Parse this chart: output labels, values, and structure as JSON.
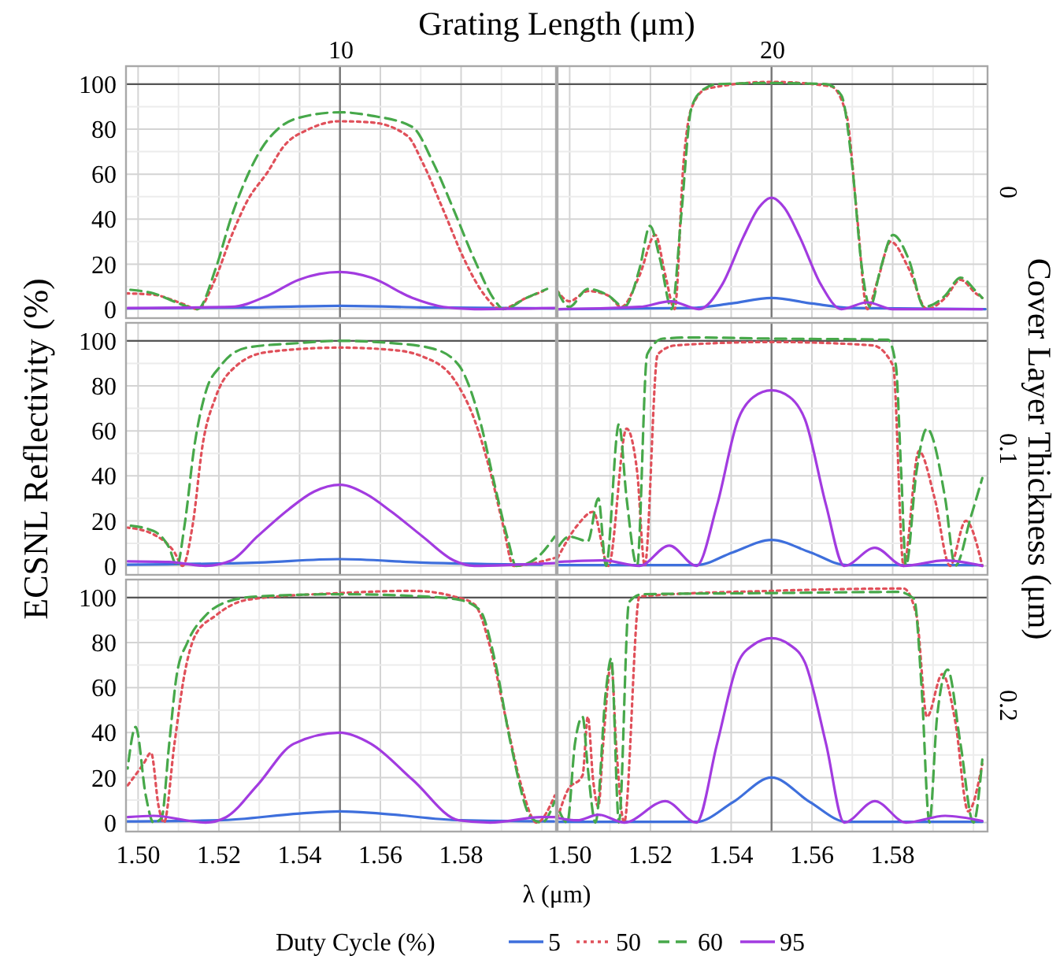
{
  "chart_data": [
    {
      "type": "line",
      "title": "10",
      "annotations": [
        "Grating Length (μm)",
        "Cover Layer Thickness (μm)"
      ],
      "legend": "bottom",
      "legend_title": "Duty Cycle (%)",
      "tick_labels": "y",
      "grid": true,
      "xlim": [
        1.497,
        1.6035
      ],
      "ylim": [
        -4,
        108
      ],
      "xticks": [
        1.5,
        {
          "value": 1.51,
          "label": null
        },
        1.52,
        {
          "value": 1.53,
          "label": null
        },
        1.54,
        {
          "value": 1.55,
          "label": null
        },
        1.56,
        {
          "value": 1.57,
          "label": null
        },
        1.58,
        {
          "value": 1.59,
          "label": null
        },
        {
          "value": 1.6,
          "label": null
        }
      ],
      "yticks": [
        0,
        {
          "value": 10,
          "label": null
        },
        20,
        {
          "value": 30,
          "label": null
        },
        40,
        {
          "value": 50,
          "label": null
        },
        60,
        {
          "value": 70,
          "label": null
        },
        80,
        {
          "value": 90,
          "label": null
        },
        100
      ],
      "ref_lines": [
        {
          "axis": "y",
          "value": 100,
          "color": "#555555"
        },
        {
          "axis": "x",
          "value": 1.55,
          "color": "#777777"
        }
      ],
      "series": [
        {
          "name": "5",
          "color": "#3e6fdc",
          "line_style": "solid",
          "x": [
            1.497,
            1.53,
            1.55,
            1.57,
            1.603
          ],
          "values": [
            0.3,
            0.8,
            1.5,
            0.8,
            0.3
          ]
        },
        {
          "name": "50",
          "color": "#e0505a",
          "line_style": "dotted",
          "x": [
            1.497,
            1.5038,
            1.511,
            1.5147,
            1.519,
            1.523,
            1.527,
            1.5321,
            1.5359,
            1.5423,
            1.55,
            1.5577,
            1.5667,
            1.5705,
            1.5756,
            1.5808,
            1.5859,
            1.5897,
            1.5962,
            1.6003
          ],
          "values": [
            7,
            6.4,
            2.4,
            0,
            13,
            32,
            48,
            61,
            72,
            80,
            83.5,
            83,
            77,
            65,
            44,
            22,
            6,
            0,
            5,
            8
          ]
        },
        {
          "name": "60",
          "color": "#47a84a",
          "line_style": "dashed",
          "x": [
            1.4974,
            1.5038,
            1.5103,
            1.5147,
            1.5192,
            1.5231,
            1.527,
            1.5308,
            1.5346,
            1.5397,
            1.55,
            1.5577,
            1.5679,
            1.5731,
            1.5782,
            1.5833,
            1.5885,
            1.5904,
            1.5962,
            1.6013
          ],
          "values": [
            8.7,
            7,
            2.4,
            0,
            18,
            41,
            59,
            72,
            80,
            85,
            87.5,
            86,
            81,
            65,
            44,
            22,
            3.5,
            0,
            5,
            9
          ]
        },
        {
          "name": "95",
          "color": "#a23be0",
          "line_style": "solid",
          "x": [
            1.4974,
            1.5231,
            1.5321,
            1.5397,
            1.55,
            1.5577,
            1.5679,
            1.5756,
            1.5833,
            1.6032
          ],
          "values": [
            0.5,
            1,
            6,
            13,
            16.5,
            14,
            5,
            1,
            0,
            0.5
          ]
        }
      ]
    },
    {
      "type": "line",
      "title": "20",
      "y2label": "0",
      "tick_labels": false,
      "grid": true,
      "xlim": [
        1.497,
        1.6035
      ],
      "ylim": [
        -4,
        108
      ],
      "xticks": [
        1.5,
        {
          "value": 1.51,
          "label": null
        },
        1.52,
        {
          "value": 1.53,
          "label": null
        },
        1.54,
        {
          "value": 1.55,
          "label": null
        },
        1.56,
        {
          "value": 1.57,
          "label": null
        },
        1.58,
        {
          "value": 1.59,
          "label": null
        },
        {
          "value": 1.6,
          "label": null
        }
      ],
      "yticks": [
        0,
        {
          "value": 10,
          "label": null
        },
        20,
        {
          "value": 30,
          "label": null
        },
        40,
        {
          "value": 50,
          "label": null
        },
        60,
        {
          "value": 70,
          "label": null
        },
        80,
        {
          "value": 90,
          "label": null
        },
        100
      ],
      "ref_lines": [
        {
          "axis": "y",
          "value": 100,
          "color": "#555555"
        },
        {
          "axis": "x",
          "value": 1.55,
          "color": "#777777"
        }
      ],
      "series": [
        {
          "color": "#3e6fdc",
          "line_style": "solid",
          "x": [
            1.497,
            1.53,
            1.54,
            1.55,
            1.56,
            1.57,
            1.603
          ],
          "values": [
            0,
            0.5,
            2.5,
            5,
            2.5,
            0.5,
            0
          ]
        },
        {
          "color": "#e0505a",
          "line_style": "dotted",
          "x": [
            1.497,
            1.4999,
            1.5045,
            1.5096,
            1.5128,
            1.5173,
            1.5212,
            1.5237,
            1.526,
            1.5282,
            1.5301,
            1.534,
            1.55,
            1.5647,
            1.5686,
            1.5712,
            1.5737,
            1.5763,
            1.5795,
            1.584,
            1.5885,
            1.593,
            1.5968,
            1.6006,
            1.6022
          ],
          "values": [
            8,
            3.5,
            8,
            6,
            1,
            15,
            33,
            15,
            0,
            65,
            89,
            98,
            101,
            99,
            86,
            41,
            0,
            13,
            30,
            18,
            0,
            5,
            13,
            7,
            5
          ]
        },
        {
          "color": "#47a84a",
          "line_style": "dashed",
          "x": [
            1.497,
            1.4999,
            1.5045,
            1.5096,
            1.5135,
            1.5173,
            1.5199,
            1.5224,
            1.5253,
            1.5276,
            1.5301,
            1.5327,
            1.5365,
            1.55,
            1.5635,
            1.5673,
            1.5699,
            1.5724,
            1.5744,
            1.577,
            1.5801,
            1.584,
            1.5878,
            1.593,
            1.5968,
            1.6006,
            1.6022
          ],
          "values": [
            8,
            1,
            9,
            6,
            1,
            18,
            37,
            22,
            0,
            41,
            89,
            97,
            100,
            100.5,
            100,
            95,
            65,
            18,
            1,
            18,
            33,
            22,
            1,
            6,
            14,
            8,
            5
          ]
        },
        {
          "color": "#a23be0",
          "line_style": "solid",
          "x": [
            1.497,
            1.5173,
            1.525,
            1.532,
            1.5378,
            1.543,
            1.5468,
            1.55,
            1.5532,
            1.557,
            1.5622,
            1.5673,
            1.5737,
            1.58,
            1.6022
          ],
          "values": [
            0,
            1,
            3.5,
            0,
            11,
            32,
            45,
            49.5,
            45,
            32,
            11,
            0,
            3,
            0,
            0
          ]
        }
      ]
    },
    {
      "type": "line",
      "ylabel": "ECSNL Reflectivity (%)",
      "tick_labels": "y",
      "grid": true,
      "xlim": [
        1.497,
        1.6035
      ],
      "ylim": [
        -4,
        108
      ],
      "xticks": [
        1.5,
        {
          "value": 1.51,
          "label": null
        },
        1.52,
        {
          "value": 1.53,
          "label": null
        },
        1.54,
        {
          "value": 1.55,
          "label": null
        },
        1.56,
        {
          "value": 1.57,
          "label": null
        },
        1.58,
        {
          "value": 1.59,
          "label": null
        },
        {
          "value": 1.6,
          "label": null
        }
      ],
      "yticks": [
        0,
        {
          "value": 10,
          "label": null
        },
        20,
        {
          "value": 30,
          "label": null
        },
        40,
        {
          "value": 50,
          "label": null
        },
        60,
        {
          "value": 70,
          "label": null
        },
        80,
        {
          "value": 90,
          "label": null
        },
        100
      ],
      "ref_lines": [
        {
          "axis": "y",
          "value": 100,
          "color": "#555555"
        },
        {
          "axis": "x",
          "value": 1.55,
          "color": "#777777"
        }
      ],
      "series": [
        {
          "color": "#3e6fdc",
          "line_style": "solid",
          "x": [
            1.497,
            1.53,
            1.55,
            1.57,
            1.6
          ],
          "values": [
            0.5,
            1.5,
            3,
            1.5,
            0.5
          ]
        },
        {
          "color": "#e0505a",
          "line_style": "dotted",
          "x": [
            1.4974,
            1.5038,
            1.509,
            1.511,
            1.5135,
            1.516,
            1.5192,
            1.5244,
            1.532,
            1.55,
            1.5628,
            1.5705,
            1.5782,
            1.5833,
            1.5872,
            1.5904,
            1.593,
            1.5974,
            1.6032
          ],
          "values": [
            17,
            14,
            6,
            0,
            18,
            54,
            75,
            89,
            95,
            97,
            96,
            93,
            83,
            65,
            42,
            18,
            0,
            1,
            3.5
          ]
        },
        {
          "color": "#47a84a",
          "line_style": "dashed",
          "x": [
            1.4974,
            1.5038,
            1.5077,
            1.5096,
            1.5115,
            1.514,
            1.5167,
            1.5205,
            1.527,
            1.5397,
            1.55,
            1.5628,
            1.5731,
            1.5795,
            1.5846,
            1.5885,
            1.5917,
            1.5936,
            1.5987,
            1.6032
          ],
          "values": [
            18,
            15.5,
            8,
            0,
            18,
            54,
            77,
            89,
            97,
            99,
            100,
            99,
            96.5,
            89,
            65,
            34.5,
            11,
            0,
            3.5,
            13
          ]
        },
        {
          "color": "#a23be0",
          "line_style": "solid",
          "x": [
            1.4974,
            1.5077,
            1.5167,
            1.5231,
            1.5295,
            1.5372,
            1.5436,
            1.55,
            1.5564,
            1.5628,
            1.5705,
            1.5782,
            1.5833,
            1.5936,
            1.6032
          ],
          "values": [
            2,
            1.7,
            0,
            2.4,
            13,
            25,
            33,
            36,
            32,
            24,
            13,
            2.4,
            0,
            0.5,
            1.2
          ]
        }
      ]
    },
    {
      "type": "line",
      "y2label": "0.1",
      "tick_labels": false,
      "grid": true,
      "xlim": [
        1.497,
        1.6035
      ],
      "ylim": [
        -4,
        108
      ],
      "xticks": [
        1.5,
        {
          "value": 1.51,
          "label": null
        },
        1.52,
        {
          "value": 1.53,
          "label": null
        },
        1.54,
        {
          "value": 1.55,
          "label": null
        },
        1.56,
        {
          "value": 1.57,
          "label": null
        },
        1.58,
        {
          "value": 1.59,
          "label": null
        },
        {
          "value": 1.6,
          "label": null
        }
      ],
      "yticks": [
        0,
        {
          "value": 10,
          "label": null
        },
        20,
        {
          "value": 30,
          "label": null
        },
        40,
        {
          "value": 50,
          "label": null
        },
        60,
        {
          "value": 70,
          "label": null
        },
        80,
        {
          "value": 90,
          "label": null
        },
        100
      ],
      "ref_lines": [
        {
          "axis": "y",
          "value": 100,
          "color": "#555555"
        },
        {
          "axis": "x",
          "value": 1.55,
          "color": "#777777"
        }
      ],
      "series": [
        {
          "color": "#3e6fdc",
          "line_style": "solid",
          "x": [
            1.497,
            1.5314,
            1.5404,
            1.55,
            1.5596,
            1.5686,
            1.6022
          ],
          "values": [
            0.3,
            0.3,
            6,
            11.5,
            6,
            0.3,
            0.3
          ]
        },
        {
          "color": "#e0505a",
          "line_style": "dotted",
          "x": [
            1.497,
            1.5019,
            1.5058,
            1.5096,
            1.5141,
            1.5167,
            1.5186,
            1.5218,
            1.5263,
            1.55,
            1.575,
            1.5801,
            1.5827,
            1.5865,
            1.5904,
            1.5942,
            1.5981,
            1.6022
          ],
          "values": [
            3.5,
            18,
            24,
            0,
            61,
            42,
            0,
            94,
            98,
            99.5,
            98,
            89,
            0,
            51,
            30,
            0,
            20,
            0
          ]
        },
        {
          "color": "#47a84a",
          "line_style": "dashed",
          "x": [
            1.497,
            1.4999,
            1.5045,
            1.5071,
            1.509,
            1.5122,
            1.5141,
            1.5167,
            1.5192,
            1.5231,
            1.5301,
            1.55,
            1.5788,
            1.5808,
            1.5821,
            1.5833,
            1.5859,
            1.5885,
            1.593,
            1.5955,
            1.5994,
            1.6022
          ],
          "values": [
            8,
            13,
            11,
            30,
            0,
            63,
            30,
            0,
            94,
            101,
            101.5,
            101,
            100.5,
            89,
            42,
            0,
            42,
            61,
            30,
            0,
            22,
            39
          ]
        },
        {
          "color": "#a23be0",
          "line_style": "solid",
          "x": [
            1.497,
            1.5083,
            1.5173,
            1.5247,
            1.5314,
            1.5365,
            1.5417,
            1.5455,
            1.55,
            1.5545,
            1.5583,
            1.5635,
            1.568,
            1.5756,
            1.5827,
            1.593,
            1.6022
          ],
          "values": [
            1.7,
            2.4,
            0,
            9,
            0,
            27,
            65,
            75,
            78,
            75,
            65,
            27,
            0,
            8,
            0,
            2.4,
            0
          ]
        }
      ]
    },
    {
      "type": "line",
      "xlabel": "λ (μm)",
      "grid": true,
      "xlim": [
        1.497,
        1.6035
      ],
      "ylim": [
        -4,
        108
      ],
      "xticks": [
        {
          "value": 1.5,
          "label": "1.50"
        },
        {
          "value": 1.51,
          "label": null
        },
        {
          "value": 1.52,
          "label": "1.52"
        },
        {
          "value": 1.53,
          "label": null
        },
        {
          "value": 1.54,
          "label": "1.54"
        },
        {
          "value": 1.55,
          "label": null
        },
        {
          "value": 1.56,
          "label": "1.56"
        },
        {
          "value": 1.57,
          "label": null
        },
        {
          "value": 1.58,
          "label": "1.58"
        },
        {
          "value": 1.59,
          "label": null
        },
        {
          "value": 1.6,
          "label": null
        }
      ],
      "yticks": [
        0,
        {
          "value": 10,
          "label": null
        },
        20,
        {
          "value": 30,
          "label": null
        },
        40,
        {
          "value": 50,
          "label": null
        },
        60,
        {
          "value": 70,
          "label": null
        },
        80,
        {
          "value": 90,
          "label": null
        },
        100
      ],
      "ref_lines": [
        {
          "axis": "y",
          "value": 100,
          "color": "#555555"
        },
        {
          "axis": "x",
          "value": 1.55,
          "color": "#777777"
        }
      ],
      "series": [
        {
          "color": "#3e6fdc",
          "line_style": "solid",
          "x": [
            1.497,
            1.52,
            1.54,
            1.55,
            1.56,
            1.58,
            1.603
          ],
          "values": [
            0.5,
            1,
            4,
            5,
            4,
            1,
            0.5
          ]
        },
        {
          "color": "#e0505a",
          "line_style": "dotted",
          "x": [
            1.4974,
            1.5013,
            1.5032,
            1.5051,
            1.5064,
            1.509,
            1.5115,
            1.5141,
            1.5192,
            1.527,
            1.55,
            1.568,
            1.5782,
            1.5833,
            1.5872,
            1.591,
            1.5949,
            1.5987,
            1.6032
          ],
          "values": [
            16.5,
            26,
            31,
            7,
            0,
            35,
            66,
            83,
            92,
            99,
            102,
            103,
            100.5,
            97,
            78,
            47,
            16.5,
            0,
            12
          ]
        },
        {
          "color": "#47a84a",
          "line_style": "dashed",
          "x": [
            1.4974,
            1.4994,
            1.5019,
            1.5038,
            1.5058,
            1.5077,
            1.5096,
            1.5122,
            1.5167,
            1.5218,
            1.5295,
            1.55,
            1.5705,
            1.5795,
            1.5846,
            1.5885,
            1.5923,
            1.5974,
            1.6,
            1.6032
          ],
          "values": [
            24,
            42.5,
            12,
            0,
            2,
            35,
            66,
            80,
            92,
            98,
            100.5,
            101.5,
            100.5,
            99,
            94.5,
            71,
            35,
            2,
            0,
            9.5
          ]
        },
        {
          "color": "#a23be0",
          "line_style": "solid",
          "x": [
            1.4974,
            1.5038,
            1.5167,
            1.5218,
            1.5295,
            1.5385,
            1.55,
            1.5577,
            1.568,
            1.5795,
            1.5872,
            1.6,
            1.6032
          ],
          "values": [
            2.4,
            3,
            0,
            2.4,
            16.5,
            35,
            40,
            35,
            19,
            1,
            0,
            2.4,
            2.4
          ]
        }
      ]
    },
    {
      "type": "line",
      "y2label": "0.2",
      "tick_labels": "x",
      "grid": true,
      "xlim": [
        1.497,
        1.6035
      ],
      "ylim": [
        -4,
        108
      ],
      "xticks": [
        {
          "value": 1.5,
          "label": "1.50"
        },
        {
          "value": 1.51,
          "label": null
        },
        {
          "value": 1.52,
          "label": "1.52"
        },
        {
          "value": 1.53,
          "label": null
        },
        {
          "value": 1.54,
          "label": "1.54"
        },
        {
          "value": 1.55,
          "label": null
        },
        {
          "value": 1.56,
          "label": "1.56"
        },
        {
          "value": 1.57,
          "label": null
        },
        {
          "value": 1.58,
          "label": "1.58"
        },
        {
          "value": 1.59,
          "label": null
        },
        {
          "value": 1.6,
          "label": null
        }
      ],
      "yticks": [
        0,
        {
          "value": 10,
          "label": null
        },
        20,
        {
          "value": 30,
          "label": null
        },
        40,
        {
          "value": 50,
          "label": null
        },
        60,
        {
          "value": 70,
          "label": null
        },
        80,
        {
          "value": 90,
          "label": null
        },
        100
      ],
      "ref_lines": [
        {
          "axis": "y",
          "value": 100,
          "color": "#555555"
        },
        {
          "axis": "x",
          "value": 1.55,
          "color": "#777777"
        }
      ],
      "series": [
        {
          "color": "#3e6fdc",
          "line_style": "solid",
          "x": [
            1.497,
            1.5314,
            1.5404,
            1.55,
            1.5596,
            1.5686,
            1.6022
          ],
          "values": [
            0.3,
            0.3,
            9,
            20,
            9,
            0.3,
            0.3
          ]
        },
        {
          "color": "#e0505a",
          "line_style": "dotted",
          "x": [
            1.497,
            1.4994,
            1.5032,
            1.5045,
            1.5058,
            1.5071,
            1.5083,
            1.5103,
            1.5115,
            1.5135,
            1.5173,
            1.55,
            1.5827,
            1.5859,
            1.5885,
            1.5923,
            1.5955,
            1.5987,
            1.6022
          ],
          "values": [
            2,
            14,
            21,
            47,
            19,
            7,
            35,
            71,
            35,
            0,
            100.5,
            103,
            104,
            92,
            47,
            66,
            45,
            5,
            26
          ]
        },
        {
          "color": "#47a84a",
          "line_style": "dashed",
          "x": [
            1.497,
            1.4994,
            1.5013,
            1.5032,
            1.5045,
            1.5064,
            1.509,
            1.5103,
            1.5122,
            1.5147,
            1.518,
            1.55,
            1.5814,
            1.5853,
            1.5872,
            1.5891,
            1.591,
            1.5936,
            1.5968,
            1.6,
            1.6022
          ],
          "values": [
            7,
            0,
            35,
            47,
            24,
            0,
            59,
            73,
            0,
            98,
            101.5,
            102,
            102.5,
            99.5,
            59,
            0,
            47,
            68,
            35,
            0,
            28
          ]
        },
        {
          "color": "#a23be0",
          "line_style": "solid",
          "x": [
            1.497,
            1.5019,
            1.5071,
            1.5135,
            1.5237,
            1.5314,
            1.5365,
            1.5417,
            1.5455,
            1.55,
            1.5545,
            1.5583,
            1.5635,
            1.568,
            1.5756,
            1.5833,
            1.593,
            1.6022
          ],
          "values": [
            2,
            1,
            3.5,
            0,
            9.5,
            0,
            35,
            71,
            79,
            82,
            79,
            71,
            35,
            0,
            9.5,
            0,
            3,
            0.7
          ]
        }
      ]
    }
  ]
}
